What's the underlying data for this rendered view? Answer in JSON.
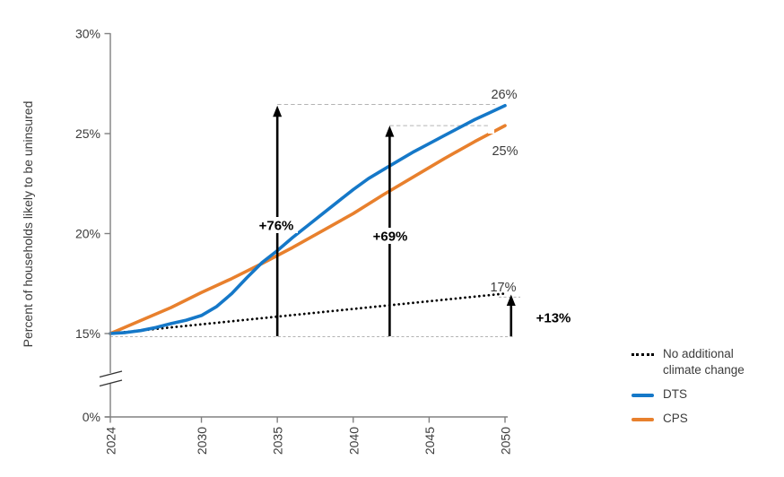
{
  "colors": {
    "dts_blue": "#1578C8",
    "cps_orange": "#E8802D",
    "annotation_black": "#000000",
    "leader_gray": "#B3B3B3",
    "axis_gray": "#808080",
    "text_dark": "#3B3B3B"
  },
  "chart_data": {
    "type": "line",
    "title": "",
    "xlabel": "",
    "ylabel": "Percent of households likely to be uninsured",
    "x_range": [
      2024,
      2050
    ],
    "y_axis": {
      "ticks": [
        {
          "label": "30%",
          "value": 30
        },
        {
          "label": "25%",
          "value": 25
        },
        {
          "label": "20%",
          "value": 20
        },
        {
          "label": "15%",
          "value": 15
        },
        {
          "label": "0%",
          "value": 0
        }
      ],
      "axis_break_between": [
        0,
        15
      ]
    },
    "x_axis": {
      "ticks": [
        {
          "label": "2024",
          "value": 2024
        },
        {
          "label": "2030",
          "value": 2030
        },
        {
          "label": "2035",
          "value": 2035
        },
        {
          "label": "2040",
          "value": 2040
        },
        {
          "label": "2045",
          "value": 2045
        },
        {
          "label": "2050",
          "value": 2050
        }
      ]
    },
    "grid": false,
    "series": [
      {
        "name": "No additional climate change",
        "style": "dotted",
        "color": "#000000",
        "points": [
          [
            2024,
            15.0
          ],
          [
            2050,
            17.0
          ]
        ],
        "end_label": "17%"
      },
      {
        "name": "DTS",
        "style": "solid",
        "color": "#1578C8",
        "points": [
          [
            2024,
            15.0
          ],
          [
            2025,
            15.05
          ],
          [
            2026,
            15.15
          ],
          [
            2027,
            15.3
          ],
          [
            2028,
            15.5
          ],
          [
            2029,
            15.67
          ],
          [
            2030,
            15.9
          ],
          [
            2031,
            16.35
          ],
          [
            2032,
            17.0
          ],
          [
            2033,
            17.8
          ],
          [
            2034,
            18.55
          ],
          [
            2035,
            19.15
          ],
          [
            2036,
            19.8
          ],
          [
            2037,
            20.4
          ],
          [
            2038,
            21.0
          ],
          [
            2039,
            21.6
          ],
          [
            2040,
            22.2
          ],
          [
            2041,
            22.75
          ],
          [
            2042,
            23.2
          ],
          [
            2043,
            23.65
          ],
          [
            2044,
            24.1
          ],
          [
            2045,
            24.5
          ],
          [
            2046,
            24.9
          ],
          [
            2047,
            25.3
          ],
          [
            2048,
            25.7
          ],
          [
            2049,
            26.05
          ],
          [
            2050,
            26.4
          ]
        ],
        "end_label": "26%"
      },
      {
        "name": "CPS",
        "style": "solid",
        "color": "#E8802D",
        "points": [
          [
            2024,
            15.0
          ],
          [
            2026,
            15.65
          ],
          [
            2028,
            16.3
          ],
          [
            2030,
            17.05
          ],
          [
            2032,
            17.75
          ],
          [
            2034,
            18.5
          ],
          [
            2036,
            19.3
          ],
          [
            2038,
            20.15
          ],
          [
            2040,
            21.0
          ],
          [
            2042,
            21.95
          ],
          [
            2044,
            22.85
          ],
          [
            2046,
            23.75
          ],
          [
            2048,
            24.6
          ],
          [
            2050,
            25.4
          ]
        ],
        "end_label": "25%"
      }
    ],
    "annotations": [
      {
        "label": "+76%",
        "arrow_x_year": 2035,
        "from_pct": 15,
        "to_pct": 26.4,
        "leader_to_year": 2050
      },
      {
        "label": "+69%",
        "arrow_x_year": 2042.4,
        "from_pct": 15,
        "to_pct": 25.4,
        "leader_to_year": 2050
      },
      {
        "label": "+13%",
        "arrow_x_year": 2050.4,
        "from_pct": 15,
        "to_pct": 16.95,
        "leader_to_year": 2050.9
      }
    ],
    "legend": {
      "position": "right",
      "items": [
        {
          "label": "No additional climate change",
          "swatch": "dotted-black"
        },
        {
          "label": "DTS",
          "swatch": "solid-blue"
        },
        {
          "label": "CPS",
          "swatch": "solid-orange"
        }
      ]
    }
  }
}
